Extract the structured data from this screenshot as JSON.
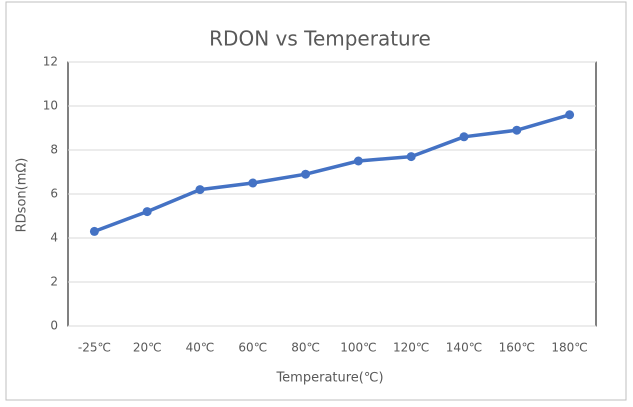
{
  "chart_data": {
    "type": "line",
    "title": "RDON vs Temperature",
    "x_label": "Temperature(℃)",
    "y_label": "RDson(mΩ)",
    "categories": [
      "-25℃",
      "20℃",
      "40℃",
      "60℃",
      "80℃",
      "100℃",
      "120℃",
      "140℃",
      "160℃",
      "180℃"
    ],
    "series": [
      {
        "name": "RDson",
        "color": "#4472c4",
        "values": [
          4.3,
          5.2,
          6.2,
          6.5,
          6.9,
          7.5,
          7.7,
          8.6,
          8.9,
          9.6
        ]
      }
    ],
    "ylim": [
      0,
      12
    ],
    "yticks": [
      0,
      2,
      4,
      6,
      8,
      10,
      12
    ],
    "grid": true
  }
}
